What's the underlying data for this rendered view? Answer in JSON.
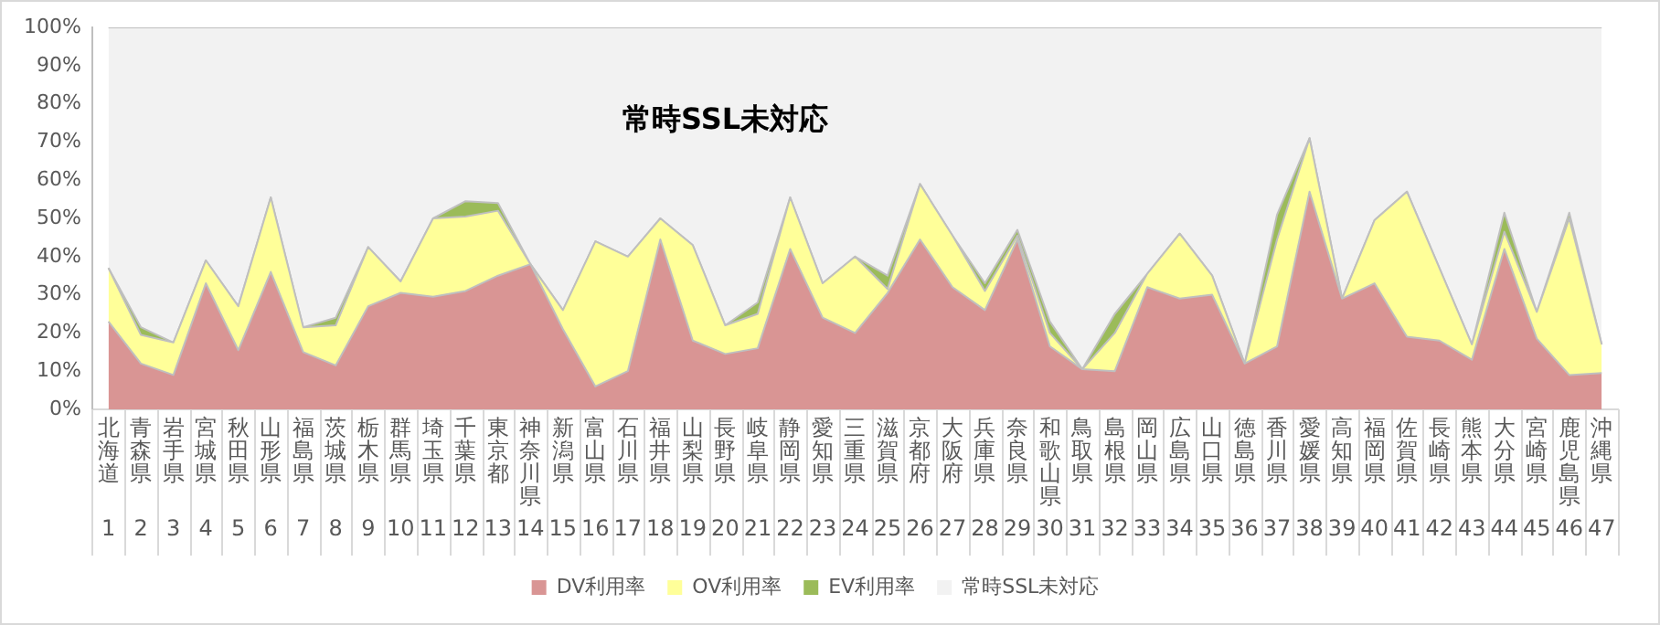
{
  "chart_data": {
    "type": "area",
    "stacked": true,
    "marker": "none",
    "grid": false,
    "legend": "bottom",
    "categories": [
      "北海道\n1",
      "青森県\n2",
      "岩手県\n3",
      "宮城県\n4",
      "秋田県\n5",
      "山形県\n6",
      "福島県\n7",
      "茨城県\n8",
      "栃木県\n9",
      "群馬県\n10",
      "埼玉県\n11",
      "千葉県\n12",
      "東京都\n13",
      "神奈川県\n14",
      "新潟県\n15",
      "富山県\n16",
      "石川県\n17",
      "福井県\n18",
      "山梨県\n19",
      "長野県\n20",
      "岐阜県\n21",
      "静岡県\n22",
      "愛知県\n23",
      "三重県\n24",
      "滋賀県\n25",
      "京都府\n26",
      "大阪府\n27",
      "兵庫県\n28",
      "奈良県\n29",
      "和歌山県\n30",
      "鳥取県\n31",
      "島根県\n32",
      "岡山県\n33",
      "広島県\n34",
      "山口県\n35",
      "徳島県\n36",
      "香川県\n37",
      "愛媛県\n38",
      "高知県\n39",
      "福岡県\n40",
      "佐賀県\n41",
      "長崎県\n42",
      "熊本県\n43",
      "大分県\n44",
      "宮崎県\n45",
      "鹿児島県\n46",
      "沖縄県\n47"
    ],
    "series": [
      {
        "name": "DV利用率",
        "color": "#d99594",
        "values": [
          23,
          12,
          9,
          33,
          15.5,
          36,
          15,
          11.5,
          27,
          30.5,
          29.5,
          31,
          35,
          38,
          21,
          6,
          10,
          44.5,
          18,
          14.5,
          16,
          42,
          24,
          20,
          30.5,
          44.5,
          32,
          26,
          44.5,
          16.5,
          10.5,
          10,
          32,
          29,
          30,
          12,
          16.5,
          57,
          29,
          33,
          19,
          18,
          13,
          42,
          18.5,
          9,
          9.5
        ]
      },
      {
        "name": "OV利用率",
        "color": "#ffff99",
        "values": [
          14,
          7.5,
          8.5,
          6,
          11.5,
          19.5,
          6.5,
          10.5,
          15.5,
          3,
          20.5,
          19.5,
          17,
          0,
          5,
          38,
          30,
          5.5,
          25,
          7.5,
          9,
          13.5,
          9,
          20,
          1,
          14.5,
          13.5,
          5,
          1,
          3.5,
          0,
          10,
          3.5,
          17,
          5,
          0,
          28,
          14,
          0,
          16.5,
          38,
          19,
          4,
          4.5,
          7,
          41,
          7.5
        ]
      },
      {
        "name": "EV利用率",
        "color": "#9bbb59",
        "values": [
          0,
          2,
          0,
          0,
          0,
          0,
          0,
          2,
          0,
          0,
          0,
          4,
          2,
          0,
          0,
          0,
          0,
          0,
          0,
          0,
          3,
          0,
          0,
          0,
          3.5,
          0,
          0,
          2,
          1.5,
          3,
          0,
          5,
          0,
          0,
          0,
          0,
          6.5,
          0,
          0,
          0,
          0,
          0,
          0,
          5,
          0,
          1.5,
          0
        ]
      },
      {
        "name": "常時SSL未対応",
        "color": "#f2f2f2",
        "values": [
          63,
          78.5,
          82.5,
          61,
          73,
          44.5,
          78.5,
          76,
          57.5,
          66.5,
          50,
          45.5,
          46,
          62,
          74,
          56,
          60,
          50,
          57,
          78,
          72,
          44.5,
          67,
          60,
          65,
          41,
          54.5,
          67,
          53,
          77,
          89.5,
          75,
          64.5,
          54,
          65,
          88,
          49,
          29,
          71,
          50.5,
          43,
          63,
          83,
          48.5,
          74.5,
          48.5,
          83
        ]
      }
    ],
    "ylim": [
      0,
      100
    ],
    "yticks": [
      {
        "value": 0,
        "label": "0%"
      },
      {
        "value": 10,
        "label": "10%"
      },
      {
        "value": 20,
        "label": "20%"
      },
      {
        "value": 30,
        "label": "30%"
      },
      {
        "value": 40,
        "label": "40%"
      },
      {
        "value": 50,
        "label": "50%"
      },
      {
        "value": 60,
        "label": "60%"
      },
      {
        "value": 70,
        "label": "70%"
      },
      {
        "value": 80,
        "label": "80%"
      },
      {
        "value": 90,
        "label": "90%"
      },
      {
        "value": 100,
        "label": "100%"
      }
    ],
    "annotations": [
      "常時SSL未対応"
    ]
  }
}
